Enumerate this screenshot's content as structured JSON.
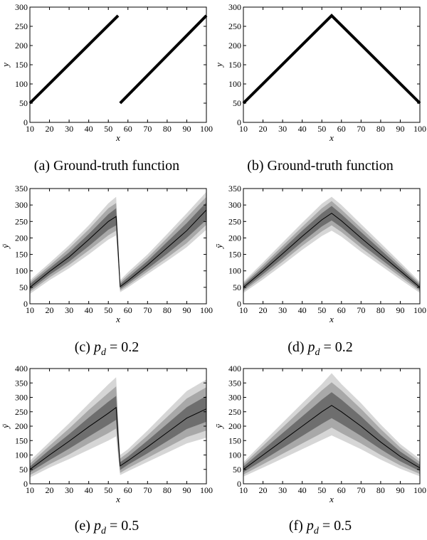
{
  "figure": {
    "panels": [
      {
        "caption": "(a) Ground-truth function"
      },
      {
        "caption": "(b) Ground-truth function"
      },
      {
        "caption": "(c) p_d = 0.2"
      },
      {
        "caption": "(d) p_d = 0.2"
      },
      {
        "caption": "(e) p_d = 0.5"
      },
      {
        "caption": "(f) p_d = 0.5"
      }
    ]
  },
  "chart_data": [
    {
      "type": "line",
      "panel": "(a)",
      "title": "",
      "xlabel": "x",
      "ylabel": "y",
      "xlim": [
        10,
        100
      ],
      "ylim": [
        0,
        300
      ],
      "xticks": [
        10,
        20,
        30,
        40,
        50,
        60,
        70,
        80,
        90,
        100
      ],
      "yticks": [
        0,
        50,
        100,
        150,
        200,
        250,
        300
      ],
      "grid": false,
      "series": [
        {
          "x": [
            10,
            55
          ],
          "y": [
            50,
            278
          ]
        },
        {
          "x": [
            56,
            100
          ],
          "y": [
            50,
            278
          ]
        }
      ]
    },
    {
      "type": "line",
      "panel": "(b)",
      "title": "",
      "xlabel": "x",
      "ylabel": "y",
      "xlim": [
        10,
        100
      ],
      "ylim": [
        0,
        300
      ],
      "xticks": [
        10,
        20,
        30,
        40,
        50,
        60,
        70,
        80,
        90,
        100
      ],
      "yticks": [
        0,
        50,
        100,
        150,
        200,
        250,
        300
      ],
      "grid": false,
      "series": [
        {
          "x": [
            10,
            55,
            100
          ],
          "y": [
            50,
            278,
            50
          ]
        }
      ]
    },
    {
      "type": "area",
      "panel": "(c)",
      "title": "",
      "xlabel": "x",
      "ylabel": "ȳ",
      "xlim": [
        10,
        100
      ],
      "ylim": [
        0,
        350
      ],
      "xticks": [
        10,
        20,
        30,
        40,
        50,
        60,
        70,
        80,
        90,
        100
      ],
      "yticks": [
        0,
        50,
        100,
        150,
        200,
        250,
        300,
        350
      ],
      "grid": false,
      "x": [
        10,
        20,
        30,
        40,
        50,
        54,
        55,
        56,
        60,
        70,
        80,
        90,
        100
      ],
      "mean": [
        50,
        98,
        142,
        195,
        250,
        265,
        160,
        52,
        70,
        118,
        170,
        222,
        285
      ],
      "bands": [
        {
          "lower": [
            42,
            88,
            128,
            175,
            225,
            238,
            140,
            45,
            62,
            106,
            152,
            200,
            255
          ],
          "upper": [
            60,
            108,
            156,
            212,
            272,
            290,
            180,
            60,
            80,
            130,
            188,
            245,
            308
          ]
        },
        {
          "lower": [
            36,
            80,
            118,
            162,
            208,
            222,
            130,
            40,
            56,
            98,
            140,
            184,
            240
          ],
          "upper": [
            66,
            116,
            168,
            226,
            290,
            306,
            190,
            66,
            88,
            140,
            200,
            262,
            325
          ]
        },
        {
          "lower": [
            30,
            72,
            108,
            150,
            195,
            208,
            120,
            35,
            50,
            90,
            130,
            172,
            225
          ],
          "upper": [
            72,
            124,
            178,
            238,
            305,
            325,
            200,
            72,
            96,
            150,
            212,
            275,
            340
          ]
        }
      ]
    },
    {
      "type": "area",
      "panel": "(d)",
      "title": "",
      "xlabel": "x",
      "ylabel": "ȳ",
      "xlim": [
        10,
        100
      ],
      "ylim": [
        0,
        350
      ],
      "xticks": [
        10,
        20,
        30,
        40,
        50,
        60,
        70,
        80,
        90,
        100
      ],
      "yticks": [
        0,
        50,
        100,
        150,
        200,
        250,
        300,
        350
      ],
      "grid": false,
      "x": [
        10,
        20,
        30,
        40,
        50,
        55,
        60,
        70,
        80,
        90,
        100
      ],
      "mean": [
        50,
        100,
        152,
        205,
        255,
        275,
        252,
        200,
        150,
        100,
        50
      ],
      "bands": [
        {
          "lower": [
            43,
            90,
            138,
            188,
            235,
            253,
            232,
            182,
            136,
            90,
            43
          ],
          "upper": [
            57,
            110,
            166,
            222,
            275,
            297,
            272,
            218,
            164,
            110,
            57
          ]
        },
        {
          "lower": [
            38,
            82,
            128,
            176,
            220,
            238,
            218,
            170,
            126,
            82,
            38
          ],
          "upper": [
            62,
            118,
            176,
            234,
            290,
            312,
            286,
            230,
            174,
            118,
            62
          ]
        },
        {
          "lower": [
            33,
            74,
            118,
            164,
            206,
            222,
            204,
            158,
            116,
            74,
            33
          ],
          "upper": [
            67,
            126,
            186,
            246,
            304,
            325,
            300,
            242,
            184,
            126,
            67
          ]
        }
      ]
    },
    {
      "type": "area",
      "panel": "(e)",
      "title": "",
      "xlabel": "x",
      "ylabel": "ȳ",
      "xlim": [
        10,
        100
      ],
      "ylim": [
        0,
        400
      ],
      "xticks": [
        10,
        20,
        30,
        40,
        50,
        60,
        70,
        80,
        90,
        100
      ],
      "yticks": [
        0,
        50,
        100,
        150,
        200,
        250,
        300,
        350,
        400
      ],
      "grid": false,
      "x": [
        10,
        20,
        30,
        40,
        50,
        54,
        55,
        56,
        60,
        70,
        80,
        90,
        100
      ],
      "mean": [
        50,
        100,
        148,
        198,
        245,
        265,
        160,
        62,
        80,
        128,
        178,
        228,
        260
      ],
      "bands": [
        {
          "lower": [
            40,
            82,
            122,
            164,
            205,
            222,
            130,
            48,
            66,
            106,
            148,
            190,
            215
          ],
          "upper": [
            60,
            118,
            172,
            230,
            285,
            305,
            190,
            75,
            94,
            150,
            208,
            266,
            305
          ]
        },
        {
          "lower": [
            30,
            68,
            102,
            140,
            176,
            192,
            110,
            38,
            54,
            90,
            126,
            162,
            185
          ],
          "upper": [
            70,
            132,
            192,
            256,
            315,
            338,
            210,
            88,
            108,
            168,
            232,
            296,
            335
          ]
        },
        {
          "lower": [
            22,
            56,
            86,
            118,
            150,
            165,
            95,
            30,
            44,
            76,
            108,
            140,
            160
          ],
          "upper": [
            80,
            145,
            210,
            278,
            345,
            370,
            230,
            100,
            120,
            185,
            254,
            322,
            362
          ]
        }
      ]
    },
    {
      "type": "area",
      "panel": "(f)",
      "title": "",
      "xlabel": "x",
      "ylabel": "ȳ",
      "xlim": [
        10,
        100
      ],
      "ylim": [
        0,
        400
      ],
      "xticks": [
        10,
        20,
        30,
        40,
        50,
        60,
        70,
        80,
        90,
        100
      ],
      "yticks": [
        0,
        50,
        100,
        150,
        200,
        250,
        300,
        350,
        400
      ],
      "grid": false,
      "x": [
        10,
        20,
        30,
        40,
        50,
        55,
        60,
        70,
        80,
        90,
        100
      ],
      "mean": [
        50,
        100,
        150,
        200,
        250,
        272,
        250,
        200,
        145,
        95,
        55
      ],
      "bands": [
        {
          "lower": [
            40,
            82,
            124,
            166,
            208,
            228,
            208,
            166,
            120,
            78,
            44
          ],
          "upper": [
            60,
            118,
            176,
            234,
            292,
            318,
            292,
            234,
            170,
            112,
            66
          ]
        },
        {
          "lower": [
            32,
            68,
            104,
            140,
            176,
            195,
            176,
            140,
            100,
            64,
            34
          ],
          "upper": [
            68,
            132,
            196,
            260,
            324,
            352,
            324,
            260,
            190,
            126,
            76
          ]
        },
        {
          "lower": [
            25,
            56,
            88,
            120,
            152,
            168,
            152,
            120,
            84,
            52,
            26
          ],
          "upper": [
            75,
            144,
            212,
            280,
            346,
            384,
            346,
            280,
            206,
            138,
            86
          ]
        }
      ]
    }
  ]
}
